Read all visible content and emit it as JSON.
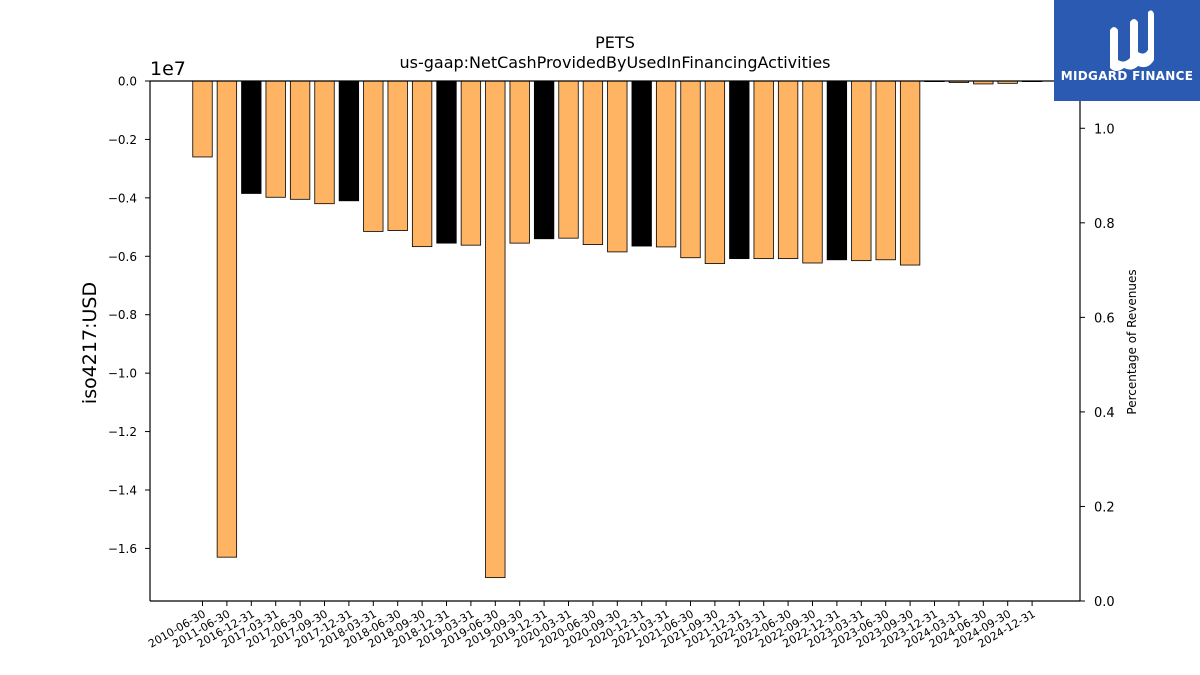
{
  "chart_data": {
    "type": "bar",
    "title": "PETS",
    "subtitle": "us-gaap:NetCashProvidedByUsedInFinancingActivities",
    "ylabel": "iso4217:USD",
    "ylabel_right": "Percentage of Revenues",
    "offset_label": "1e7",
    "ylim": [
      -17.8,
      0.0
    ],
    "ylim_right": [
      0.0,
      1.1
    ],
    "y_ticks": [
      "0.0",
      "−0.2",
      "−0.4",
      "−0.6",
      "−0.8",
      "−1.0",
      "−1.2",
      "−1.4",
      "−1.6"
    ],
    "y_tick_values": [
      0,
      -0.2,
      -0.4,
      -0.6,
      -0.8,
      -1.0,
      -1.2,
      -1.4,
      -1.6
    ],
    "y_right_ticks": [
      "0.0",
      "0.2",
      "0.4",
      "0.6",
      "0.8",
      "1.0"
    ],
    "y_right_tick_values": [
      0,
      0.2,
      0.4,
      0.6,
      0.8,
      1.0
    ],
    "categories": [
      "2010-06-30",
      "2011-06-30",
      "2016-12-31",
      "2017-03-31",
      "2017-06-30",
      "2017-09-30",
      "2017-12-31",
      "2018-03-31",
      "2018-06-30",
      "2018-09-30",
      "2018-12-31",
      "2019-03-31",
      "2019-06-30",
      "2019-09-30",
      "2019-12-31",
      "2020-03-31",
      "2020-06-30",
      "2020-09-30",
      "2020-12-31",
      "2021-03-31",
      "2021-06-30",
      "2021-09-30",
      "2021-12-31",
      "2022-03-31",
      "2022-06-30",
      "2022-09-30",
      "2022-12-31",
      "2023-03-31",
      "2023-06-30",
      "2023-09-30",
      "2023-12-31",
      "2024-03-31",
      "2024-06-30",
      "2024-09-30",
      "2024-12-31"
    ],
    "values": [
      -2.6,
      -16.3,
      -3.85,
      -3.98,
      -4.05,
      -4.2,
      -4.1,
      -5.15,
      -5.12,
      -5.67,
      -5.55,
      -5.62,
      -17.0,
      -5.55,
      -5.4,
      -5.38,
      -5.6,
      -5.85,
      -5.65,
      -5.68,
      -6.05,
      -6.25,
      -6.08,
      -6.08,
      -6.08,
      -6.23,
      -6.12,
      -6.15,
      -6.12,
      -6.3,
      0,
      -0.05,
      -0.1,
      -0.08,
      0
    ],
    "value_scale": "1e6 USD (axis shows 1e7)",
    "bar_fill": [
      "#feb462",
      "#feb462",
      "#000000",
      "#feb462",
      "#feb462",
      "#feb462",
      "#000000",
      "#feb462",
      "#feb462",
      "#feb462",
      "#000000",
      "#feb462",
      "#feb462",
      "#feb462",
      "#000000",
      "#feb462",
      "#feb462",
      "#feb462",
      "#000000",
      "#feb462",
      "#feb462",
      "#feb462",
      "#000000",
      "#feb462",
      "#feb462",
      "#feb462",
      "#000000",
      "#feb462",
      "#feb462",
      "#feb462",
      "#000000",
      "#feb462",
      "#feb462",
      "#feb462",
      "#000000"
    ],
    "colors": {
      "quarter_bar": "#feb462",
      "year_end_bar": "#000000",
      "edge": "#000000"
    },
    "grid": false
  },
  "logo": {
    "text": "MIDGARD FINANCE",
    "background": "#2a5ab1",
    "icon": "midgard-logo-icon"
  }
}
